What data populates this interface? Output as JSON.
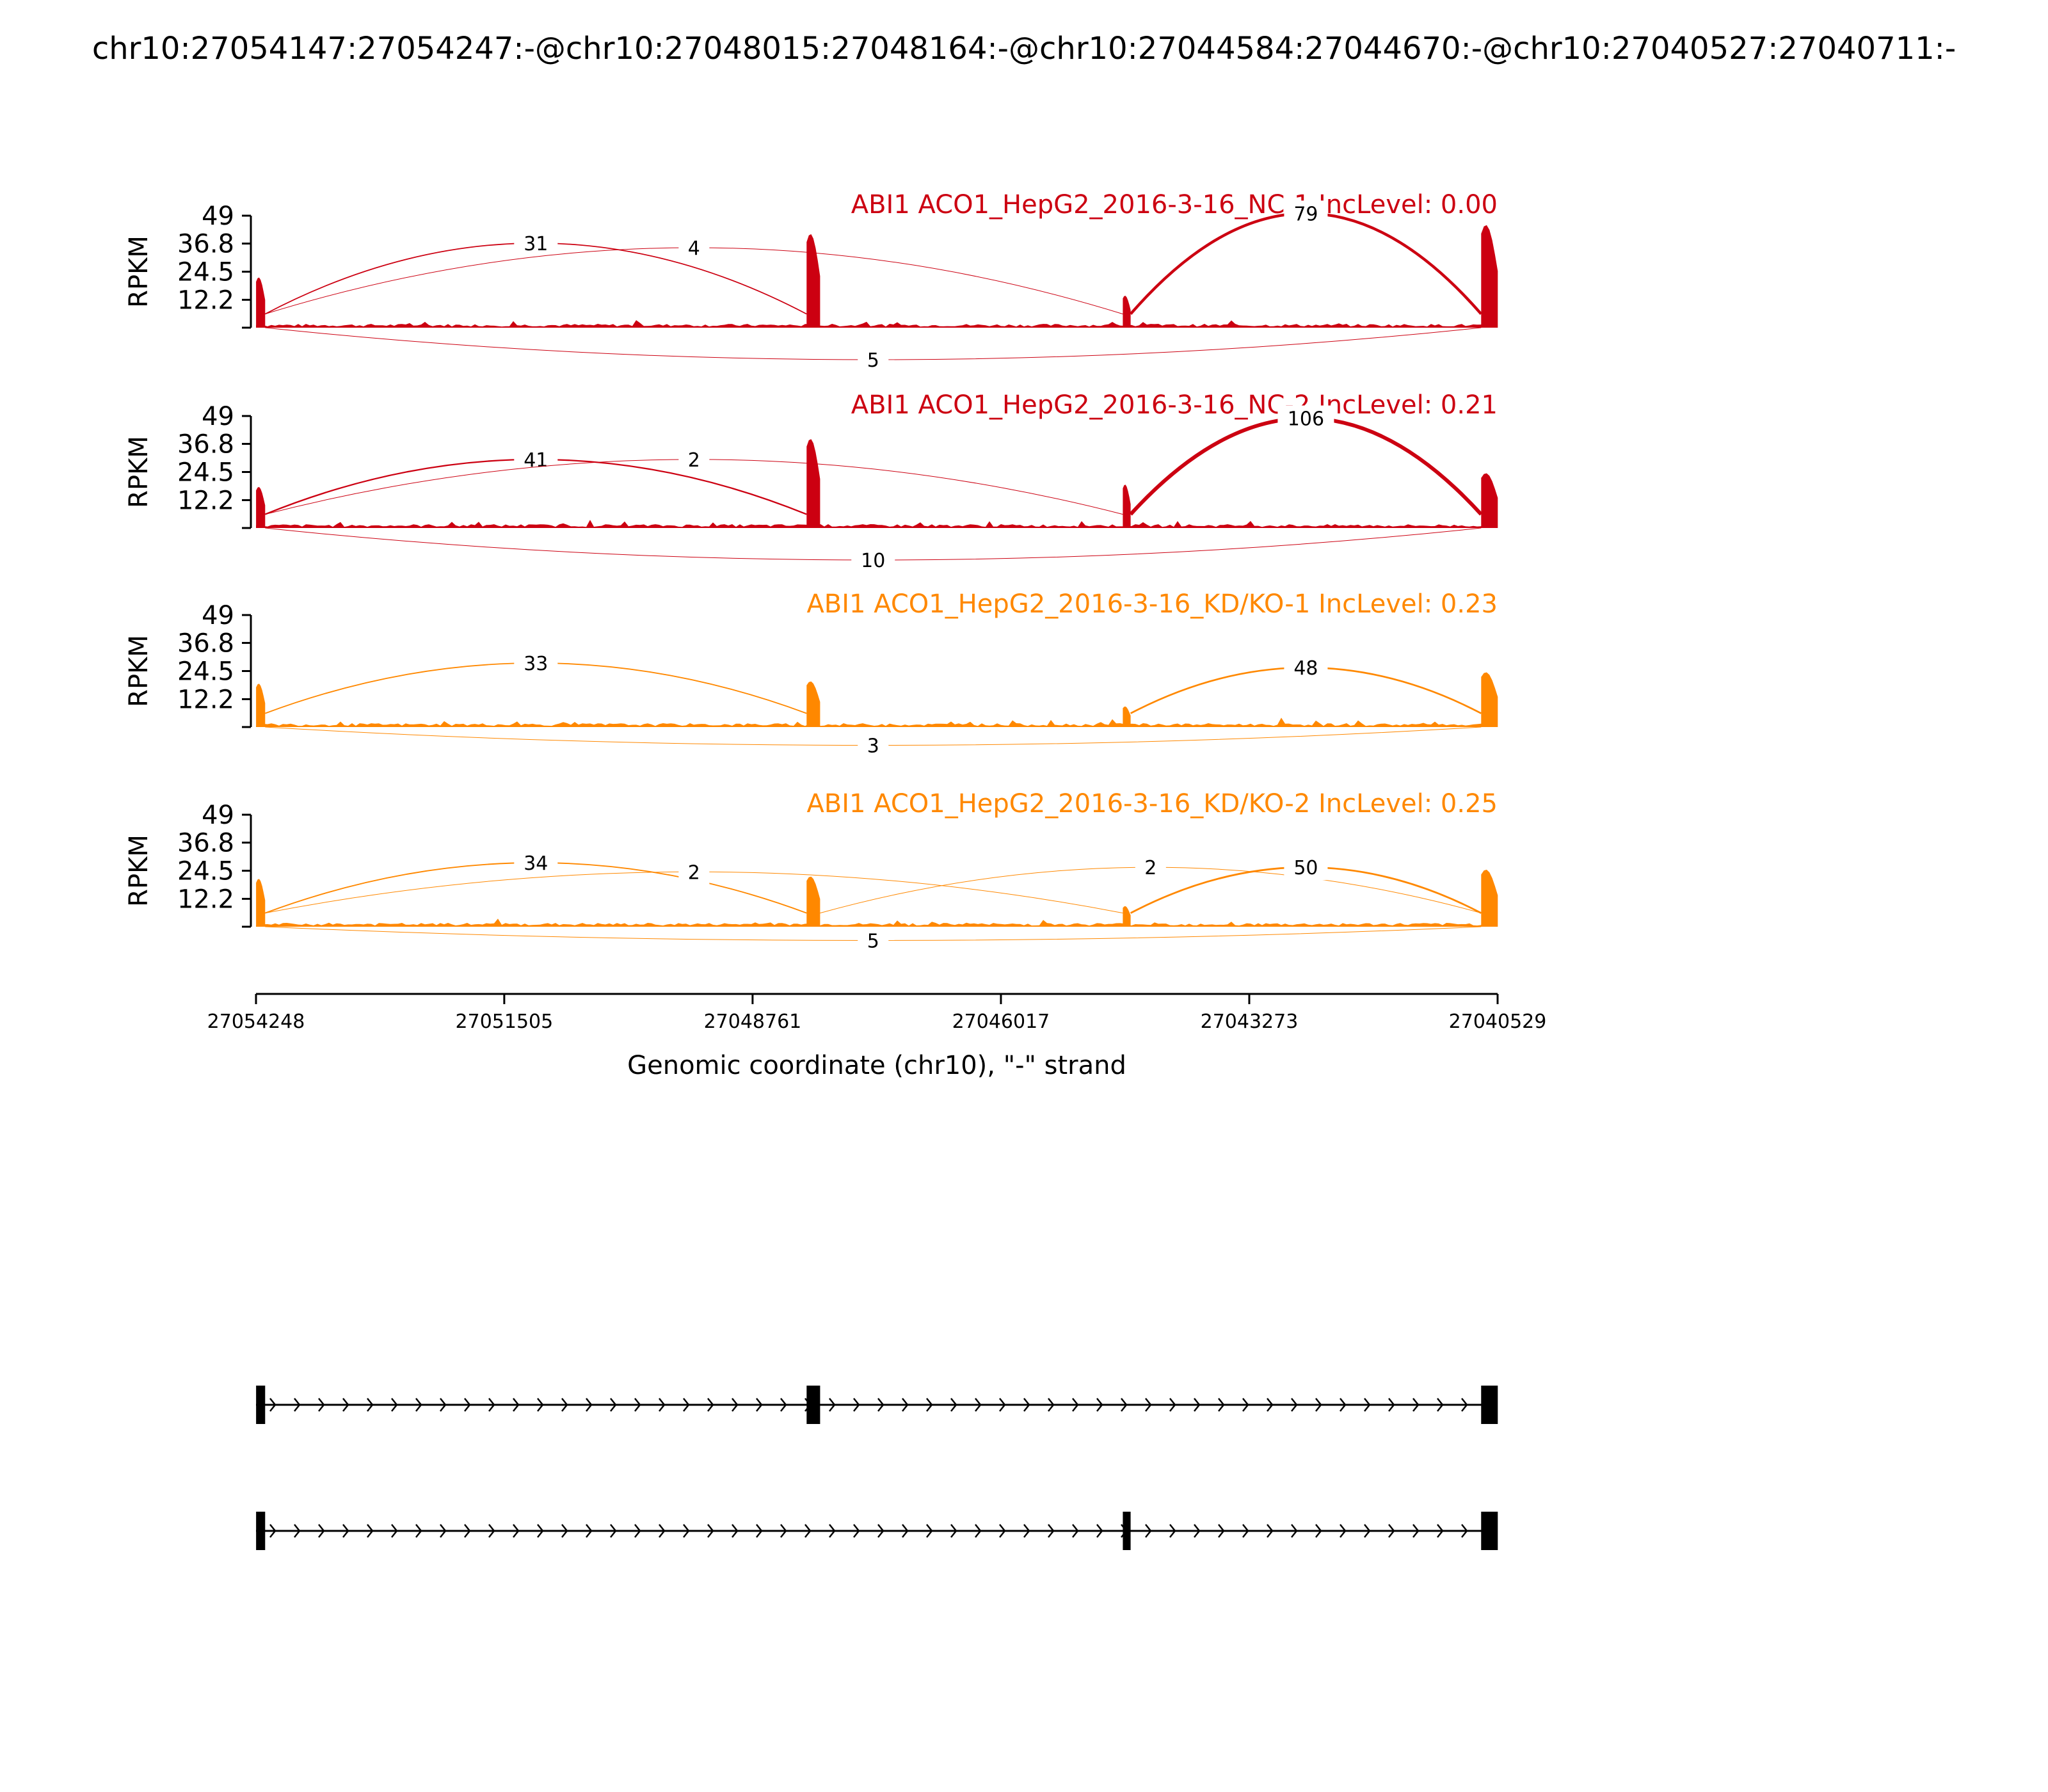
{
  "page_title": "chr10:27054147:27054247:-@chr10:27048015:27048164:-@chr10:27044584:27044670:-@chr10:27040527:27040711:-",
  "colors": {
    "nc": "#CC0011",
    "kd": "#FF8800",
    "axis": "#000000",
    "gene": "#000000"
  },
  "chart_data": {
    "type": "area",
    "subtype": "sashimi",
    "x_reversed": true,
    "xlim": [
      27054248,
      27040529
    ],
    "x_ticks": [
      27054248,
      27051505,
      27048761,
      27046017,
      27043273,
      27040529
    ],
    "x_tick_labels": [
      "27054248",
      "27051505",
      "27048761",
      "27046017",
      "27043273",
      "27040529"
    ],
    "xlabel": "Genomic coordinate (chr10), \"-\" strand",
    "ylabel": "RPKM",
    "ylim": [
      0,
      49
    ],
    "y_ticks": [
      12.2,
      24.5,
      36.8,
      49
    ],
    "y_tick_labels": [
      "12.2",
      "24.5",
      "36.8",
      "49"
    ],
    "exons": [
      {
        "start": 27054247,
        "end": 27054147
      },
      {
        "start": 27048164,
        "end": 27048015
      },
      {
        "start": 27044670,
        "end": 27044584
      },
      {
        "start": 27040711,
        "end": 27040527
      }
    ],
    "panels": [
      {
        "name": "ABI1 ACO1_HepG2_2016-3-16_NC-1 IncLevel: 0.00",
        "color_key": "nc",
        "exon_peaks": [
          22,
          41,
          14,
          45
        ],
        "junctions": [
          {
            "from": 27054147,
            "to": 27048164,
            "count": "31",
            "side": "above",
            "height": 37
          },
          {
            "from": 27054147,
            "to": 27044670,
            "count": "4",
            "side": "above",
            "height": 35
          },
          {
            "from": 27044584,
            "to": 27040711,
            "count": "79",
            "side": "above",
            "height": 50
          },
          {
            "from": 27054147,
            "to": 27040711,
            "count": "5",
            "side": "below",
            "height": 14
          }
        ]
      },
      {
        "name": "ABI1 ACO1_HepG2_2016-3-16_NC-2 IncLevel: 0.21",
        "color_key": "nc",
        "exon_peaks": [
          18,
          39,
          19,
          24
        ],
        "junctions": [
          {
            "from": 27054147,
            "to": 27048164,
            "count": "41",
            "side": "above",
            "height": 30
          },
          {
            "from": 27054147,
            "to": 27044670,
            "count": "2",
            "side": "above",
            "height": 30
          },
          {
            "from": 27044584,
            "to": 27040711,
            "count": "106",
            "side": "above",
            "height": 48
          },
          {
            "from": 27054147,
            "to": 27040711,
            "count": "10",
            "side": "below",
            "height": 14
          }
        ]
      },
      {
        "name": "ABI1 ACO1_HepG2_2016-3-16_KD/KO-1 IncLevel: 0.23",
        "color_key": "kd",
        "exon_peaks": [
          19,
          20,
          9,
          24
        ],
        "junctions": [
          {
            "from": 27054147,
            "to": 27048164,
            "count": "33",
            "side": "above",
            "height": 28
          },
          {
            "from": 27044584,
            "to": 27040711,
            "count": "48",
            "side": "above",
            "height": 26
          },
          {
            "from": 27054147,
            "to": 27040711,
            "count": "3",
            "side": "below",
            "height": 8
          }
        ]
      },
      {
        "name": "ABI1 ACO1_HepG2_2016-3-16_KD/KO-2 IncLevel: 0.25",
        "color_key": "kd",
        "exon_peaks": [
          21,
          22,
          9,
          25
        ],
        "junctions": [
          {
            "from": 27054147,
            "to": 27048164,
            "count": "34",
            "side": "above",
            "height": 28
          },
          {
            "from": 27054147,
            "to": 27044670,
            "count": "2",
            "side": "above",
            "height": 24
          },
          {
            "from": 27048015,
            "to": 27040711,
            "count": "2",
            "side": "above",
            "height": 26
          },
          {
            "from": 27044584,
            "to": 27040711,
            "count": "50",
            "side": "above",
            "height": 26
          },
          {
            "from": 27054147,
            "to": 27040711,
            "count": "5",
            "side": "below",
            "height": 6
          }
        ]
      }
    ],
    "isoforms": [
      {
        "exon_indices": [
          0,
          1,
          3
        ]
      },
      {
        "exon_indices": [
          0,
          2,
          3
        ]
      }
    ]
  }
}
